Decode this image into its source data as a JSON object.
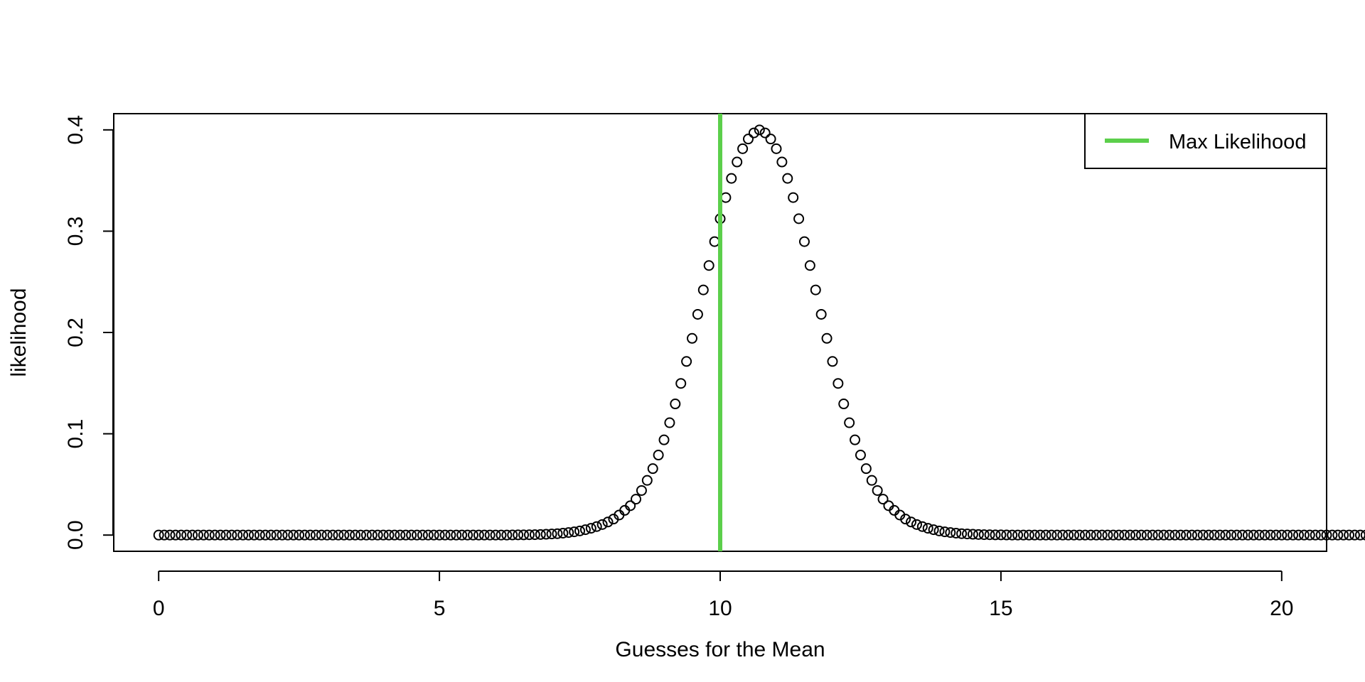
{
  "chart_data": {
    "type": "scatter",
    "title": "",
    "xlabel": "Guesses for the Mean",
    "ylabel": "likelihood",
    "xlim": [
      -0.8,
      20.8
    ],
    "ylim": [
      -0.016,
      0.416
    ],
    "x_ticks": [
      0,
      5,
      10,
      15,
      20
    ],
    "x_tick_labels": [
      "0",
      "5",
      "10",
      "15",
      "20"
    ],
    "y_ticks": [
      0.0,
      0.1,
      0.2,
      0.3,
      0.4
    ],
    "y_tick_labels": [
      "0.0",
      "0.1",
      "0.2",
      "0.3",
      "0.4"
    ],
    "grid": false,
    "series": [
      {
        "marker": "open-circle",
        "color": "#000000",
        "x_start": 0,
        "x_end": 20,
        "x_step": 0.1,
        "values": [
          0,
          0,
          0,
          0,
          0,
          0,
          0,
          0,
          0,
          0,
          0,
          0,
          0,
          0,
          0,
          0,
          0,
          0,
          0,
          0,
          0,
          0,
          0,
          0,
          0,
          0,
          0,
          0,
          0,
          0,
          0,
          0,
          0,
          0,
          0,
          0,
          0,
          0,
          0,
          0,
          0,
          0,
          0,
          0,
          0,
          0,
          0,
          0,
          0,
          0,
          0,
          0,
          0,
          0,
          0,
          0,
          0,
          0,
          0,
          0,
          0,
          0,
          0,
          0.0001,
          0.0002,
          0.0002,
          0.0003,
          0.0004,
          0.0006,
          0.0008,
          0.0011,
          0.0014,
          0.0019,
          0.0025,
          0.0032,
          0.0041,
          0.0053,
          0.0067,
          0.0084,
          0.0104,
          0.0129,
          0.0158,
          0.0198,
          0.0244,
          0.029,
          0.0355,
          0.044,
          0.054,
          0.0656,
          0.079,
          0.094,
          0.1109,
          0.1295,
          0.1497,
          0.1714,
          0.1942,
          0.2179,
          0.242,
          0.2661,
          0.2897,
          0.3123,
          0.3332,
          0.3521,
          0.3683,
          0.3814,
          0.391,
          0.397,
          0.4,
          0.397,
          0.391,
          0.3814,
          0.3683,
          0.3521,
          0.3332,
          0.3123,
          0.2897,
          0.2661,
          0.242,
          0.2179,
          0.1942,
          0.1714,
          0.1497,
          0.1295,
          0.1109,
          0.094,
          0.079,
          0.0656,
          0.054,
          0.044,
          0.0355,
          0.029,
          0.0244,
          0.0198,
          0.0158,
          0.0129,
          0.0104,
          0.0084,
          0.0067,
          0.0053,
          0.0041,
          0.0032,
          0.0025,
          0.0019,
          0.0014,
          0.0011,
          0.0008,
          0.0006,
          0.0004,
          0.0003,
          0.0002,
          0.0002,
          0.0001,
          0,
          0,
          0,
          0,
          0,
          0,
          0,
          0,
          0,
          0,
          0,
          0,
          0,
          0,
          0,
          0,
          0,
          0,
          0,
          0,
          0,
          0,
          0,
          0,
          0,
          0,
          0,
          0,
          0,
          0,
          0,
          0,
          0,
          0,
          0,
          0,
          0,
          0,
          0,
          0,
          0,
          0,
          0,
          0,
          0,
          0,
          0,
          0,
          0,
          0,
          0,
          0,
          0,
          0,
          0,
          0,
          0,
          0,
          0,
          0,
          0,
          0,
          0,
          0
        ]
      }
    ],
    "vline": {
      "x": 10,
      "color": "#5ccf4b"
    },
    "legend": {
      "position": "top-right",
      "entries": [
        {
          "label": "Max Likelihood",
          "color": "#5ccf4b"
        }
      ]
    }
  }
}
